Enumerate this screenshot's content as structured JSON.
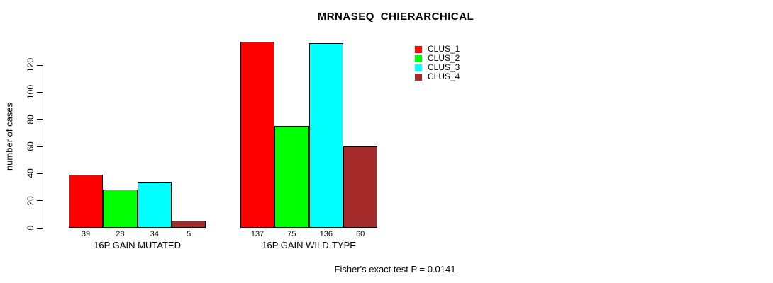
{
  "chart_data": {
    "type": "bar",
    "title": "MRNASEQ_CHIERARCHICAL",
    "ylabel": "number of cases",
    "xlabel": "",
    "categories": [
      "16P GAIN MUTATED",
      "16P GAIN WILD-TYPE"
    ],
    "series": [
      {
        "name": "CLUS_1",
        "color": "#FF0000",
        "values": [
          39,
          137
        ]
      },
      {
        "name": "CLUS_2",
        "color": "#00FF00",
        "values": [
          28,
          75
        ]
      },
      {
        "name": "CLUS_3",
        "color": "#00FFFF",
        "values": [
          34,
          136
        ]
      },
      {
        "name": "CLUS_4",
        "color": "#A52A2A",
        "values": [
          5,
          60
        ]
      }
    ],
    "yticks": [
      0,
      20,
      40,
      60,
      80,
      100,
      120
    ],
    "ylim": [
      0,
      137
    ],
    "bar_value_labels": true,
    "grid": false,
    "legend": {
      "position": "top-right",
      "entries": [
        "CLUS_1",
        "CLUS_2",
        "CLUS_3",
        "CLUS_4"
      ]
    },
    "annotation": "Fisher's exact test P = 0.0141"
  }
}
